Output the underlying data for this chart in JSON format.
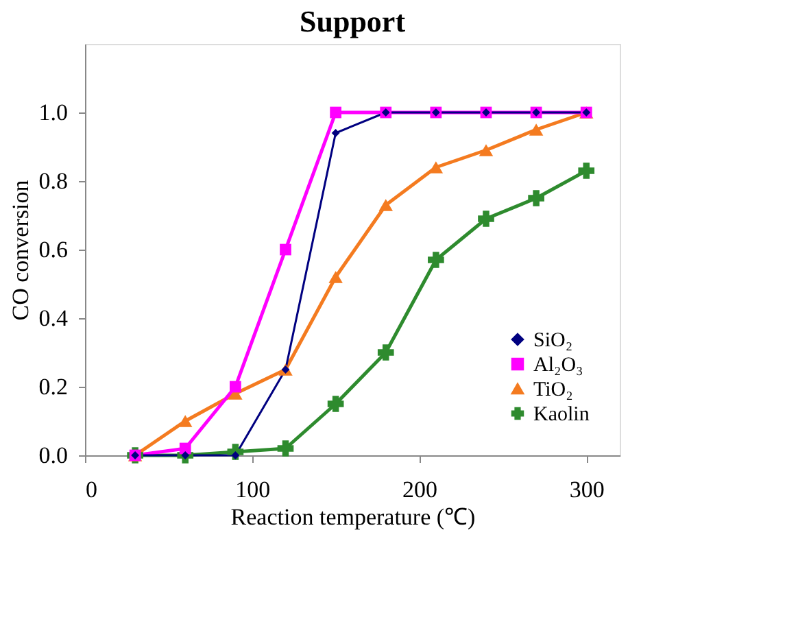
{
  "chart_data": {
    "type": "line",
    "title": "Support",
    "xlabel": "Reaction temperature (℃)",
    "ylabel": "CO conversion",
    "x": [
      30,
      60,
      90,
      120,
      150,
      180,
      210,
      240,
      270,
      300
    ],
    "xlim": [
      0,
      320
    ],
    "xticks": [
      0,
      100,
      200,
      300
    ],
    "ylim": [
      0,
      1.2
    ],
    "yticks": [
      {
        "value": 0,
        "label": "0.0"
      },
      {
        "value": 0.2,
        "label": "0.2"
      },
      {
        "value": 0.4,
        "label": "0.4"
      },
      {
        "value": 0.6,
        "label": "0.6"
      },
      {
        "value": 0.8,
        "label": "0.8"
      },
      {
        "value": 1.0,
        "label": "1.0"
      }
    ],
    "grid": false,
    "legend": "bottom right",
    "line_style": "solid",
    "series": [
      {
        "name": "SiO₂",
        "color": "#000080",
        "marker": "diamond",
        "values": [
          0,
          0,
          0,
          0.25,
          0.94,
          1,
          1,
          1,
          1,
          1
        ]
      },
      {
        "name": "Al₂O₃",
        "color": "#ff00ff",
        "marker": "square",
        "values": [
          0,
          0.02,
          0.2,
          0.6,
          1,
          1,
          1,
          1,
          1,
          1
        ]
      },
      {
        "name": "TiO₂",
        "color": "#f47b20",
        "marker": "triangle",
        "values": [
          0,
          0.1,
          0.18,
          0.25,
          0.52,
          0.73,
          0.84,
          0.89,
          0.95,
          1.0
        ]
      },
      {
        "name": "Kaolin",
        "color": "#2e8b2e",
        "marker": "cross",
        "values": [
          0,
          0,
          0.01,
          0.02,
          0.15,
          0.3,
          0.57,
          0.69,
          0.75,
          0.83
        ]
      }
    ]
  }
}
